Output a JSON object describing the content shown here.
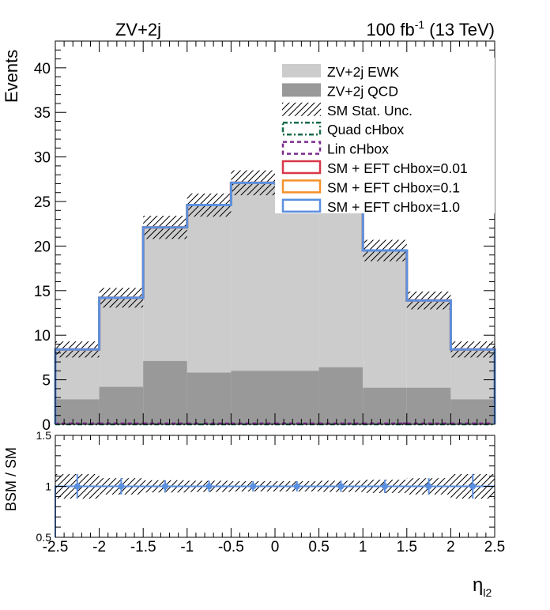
{
  "header": {
    "process": "ZV+2j",
    "lumi_value": "100 fb",
    "lumi_exp": "-1",
    "lumi_energy": " (13 TeV)"
  },
  "chart_data": [
    {
      "panel": "main",
      "type": "histogram",
      "ylabel": "Events",
      "xlim": [
        -2.5,
        2.5
      ],
      "ylim": [
        0,
        43
      ],
      "yticks": [
        0,
        5,
        10,
        15,
        20,
        25,
        30,
        35,
        40
      ],
      "bin_edges": [
        -2.5,
        -2.0,
        -1.5,
        -1.0,
        -0.5,
        0.0,
        0.5,
        1.0,
        1.5,
        2.0,
        2.5
      ],
      "series": [
        {
          "name": "ZV+2j EWK",
          "style": "filled",
          "color": "#cccccc",
          "values": [
            5.6,
            10.0,
            15.0,
            18.8,
            21.1,
            21.0,
            19.5,
            15.4,
            9.8,
            5.6
          ]
        },
        {
          "name": "ZV+2j QCD",
          "style": "filled",
          "color": "#999999",
          "values": [
            2.8,
            4.2,
            7.1,
            5.8,
            6.0,
            6.0,
            6.4,
            4.1,
            4.1,
            2.8
          ]
        },
        {
          "name": "SM Stat. Unc.",
          "style": "hatched",
          "color": "#000000",
          "values": [
            8.4,
            14.2,
            22.1,
            24.6,
            27.1,
            27.0,
            25.9,
            19.5,
            13.9,
            8.4
          ],
          "errors": [
            0.9,
            1.1,
            1.3,
            1.3,
            1.4,
            1.4,
            1.3,
            1.2,
            1.0,
            0.9
          ]
        },
        {
          "name": "Quad cHbox",
          "style": "dash-dot",
          "color": "#1a6b4a",
          "values": [
            0.005,
            0.005,
            0.005,
            0.005,
            0.005,
            0.005,
            0.005,
            0.005,
            0.005,
            0.005
          ]
        },
        {
          "name": "Lin cHbox",
          "style": "dashed",
          "color": "#7b2d8e",
          "values": [
            0.1,
            0.1,
            0.1,
            0.1,
            0.1,
            0.1,
            0.1,
            0.1,
            0.1,
            0.1
          ]
        },
        {
          "name": "SM + EFT cHbox=0.01",
          "style": "solid",
          "color": "#d9384a",
          "values": [
            8.4,
            14.2,
            22.1,
            24.6,
            27.1,
            27.0,
            25.9,
            19.5,
            13.9,
            8.4
          ]
        },
        {
          "name": "SM + EFT cHbox=0.1",
          "style": "solid",
          "color": "#f5922a",
          "values": [
            8.4,
            14.2,
            22.1,
            24.6,
            27.1,
            27.0,
            25.9,
            19.5,
            13.9,
            8.4
          ]
        },
        {
          "name": "SM + EFT cHbox=1.0",
          "style": "solid",
          "color": "#5b8fe0",
          "values": [
            8.4,
            14.2,
            22.1,
            24.6,
            27.1,
            27.0,
            25.9,
            19.5,
            13.9,
            8.4
          ]
        }
      ],
      "legend_position": "top-right"
    },
    {
      "panel": "ratio",
      "type": "scatter",
      "ylabel": "BSM / SM",
      "xlabel_base": "η",
      "xlabel_sub": "l2",
      "xlim": [
        -2.5,
        2.5
      ],
      "ylim": [
        0.5,
        1.5
      ],
      "yticks": [
        0.5,
        1,
        1.5
      ],
      "xticks": [
        -2.5,
        -2,
        -1.5,
        -1,
        -0.5,
        0,
        0.5,
        1,
        1.5,
        2,
        2.5
      ],
      "x": [
        -2.25,
        -1.75,
        -1.25,
        -0.75,
        -0.25,
        0.25,
        0.75,
        1.25,
        1.75,
        2.25
      ],
      "values": [
        1.0,
        1.0,
        1.0,
        1.0,
        1.0,
        1.0,
        1.0,
        1.0,
        1.0,
        1.0
      ],
      "errors": [
        0.12,
        0.08,
        0.06,
        0.055,
        0.05,
        0.05,
        0.055,
        0.065,
        0.08,
        0.12
      ],
      "band_errors": [
        0.12,
        0.08,
        0.06,
        0.055,
        0.05,
        0.05,
        0.055,
        0.065,
        0.08,
        0.12
      ],
      "marker_color": "#5b8fe0",
      "reference_line": 1.0
    }
  ]
}
